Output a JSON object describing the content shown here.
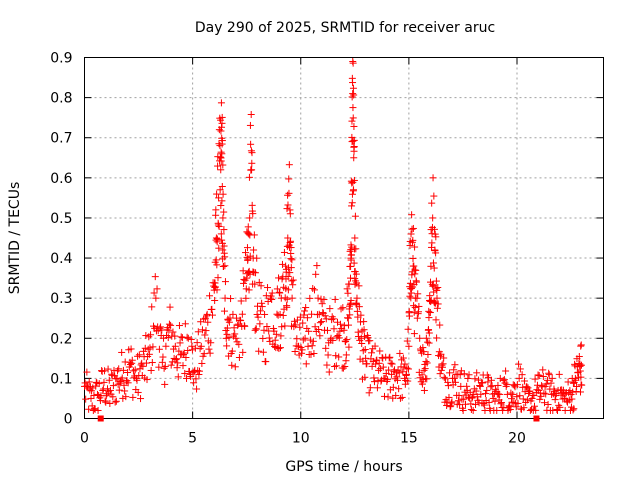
{
  "chart_data": {
    "type": "scatter",
    "title": "Day 290 of 2025, SRMTID for receiver aruc",
    "xlabel": "GPS time / hours",
    "ylabel": "SRMTID / TECUs",
    "xlim": [
      0,
      24
    ],
    "ylim": [
      0,
      0.9
    ],
    "xticks": [
      0,
      5,
      10,
      15,
      20
    ],
    "xtick_labels": [
      "0",
      "5",
      "10",
      "15",
      "20"
    ],
    "yticks": [
      0,
      0.1,
      0.2,
      0.3,
      0.4,
      0.5,
      0.6,
      0.7,
      0.8,
      0.9
    ],
    "ytick_labels": [
      "0",
      "0.1",
      "0.2",
      "0.3",
      "0.4",
      "0.5",
      "0.6",
      "0.7",
      "0.8",
      "0.9"
    ],
    "grid": true,
    "marker": "plus",
    "color": "#ff0000",
    "data_gap_markers_x": [
      0.75,
      20.9
    ],
    "series": [
      {
        "name": "SRMTID",
        "x": [
          0.0,
          0.3,
          0.6,
          0.9,
          1.2,
          1.5,
          1.8,
          2.1,
          2.4,
          2.7,
          3.0,
          3.3,
          3.6,
          3.9,
          4.2,
          4.5,
          4.8,
          5.1,
          5.4,
          5.7,
          6.0,
          6.1,
          6.2,
          6.3,
          6.35,
          6.4,
          6.5,
          6.7,
          7.0,
          7.3,
          7.5,
          7.6,
          7.7,
          7.8,
          8.0,
          8.3,
          8.6,
          8.9,
          9.1,
          9.3,
          9.4,
          9.5,
          9.6,
          9.9,
          10.2,
          10.5,
          10.8,
          11.1,
          11.4,
          11.7,
          12.0,
          12.2,
          12.3,
          12.35,
          12.4,
          12.45,
          12.5,
          12.6,
          12.8,
          13.0,
          13.3,
          13.6,
          13.9,
          14.2,
          14.5,
          14.8,
          15.0,
          15.1,
          15.2,
          15.3,
          15.5,
          15.7,
          15.9,
          16.0,
          16.1,
          16.2,
          16.3,
          16.5,
          16.8,
          17.1,
          17.4,
          17.7,
          18.0,
          18.3,
          18.6,
          18.9,
          19.2,
          19.5,
          19.8,
          20.1,
          20.4,
          20.7,
          21.0,
          21.3,
          21.6,
          21.9,
          22.2,
          22.5,
          22.7,
          22.9
        ],
        "y": [
          0.08,
          0.05,
          0.06,
          0.09,
          0.07,
          0.1,
          0.12,
          0.14,
          0.1,
          0.13,
          0.16,
          0.3,
          0.14,
          0.22,
          0.18,
          0.16,
          0.2,
          0.12,
          0.18,
          0.24,
          0.32,
          0.45,
          0.55,
          0.62,
          0.66,
          0.5,
          0.3,
          0.24,
          0.2,
          0.26,
          0.35,
          0.46,
          0.62,
          0.4,
          0.28,
          0.22,
          0.3,
          0.26,
          0.3,
          0.38,
          0.45,
          0.52,
          0.3,
          0.18,
          0.2,
          0.26,
          0.3,
          0.22,
          0.2,
          0.24,
          0.22,
          0.25,
          0.35,
          0.53,
          0.81,
          0.65,
          0.45,
          0.3,
          0.2,
          0.15,
          0.13,
          0.12,
          0.1,
          0.11,
          0.12,
          0.1,
          0.18,
          0.46,
          0.38,
          0.3,
          0.2,
          0.12,
          0.22,
          0.34,
          0.5,
          0.42,
          0.3,
          0.12,
          0.09,
          0.1,
          0.08,
          0.07,
          0.06,
          0.08,
          0.07,
          0.05,
          0.06,
          0.08,
          0.06,
          0.1,
          0.04,
          0.05,
          0.07,
          0.08,
          0.06,
          0.07,
          0.05,
          0.06,
          0.1,
          0.13
        ]
      }
    ]
  }
}
